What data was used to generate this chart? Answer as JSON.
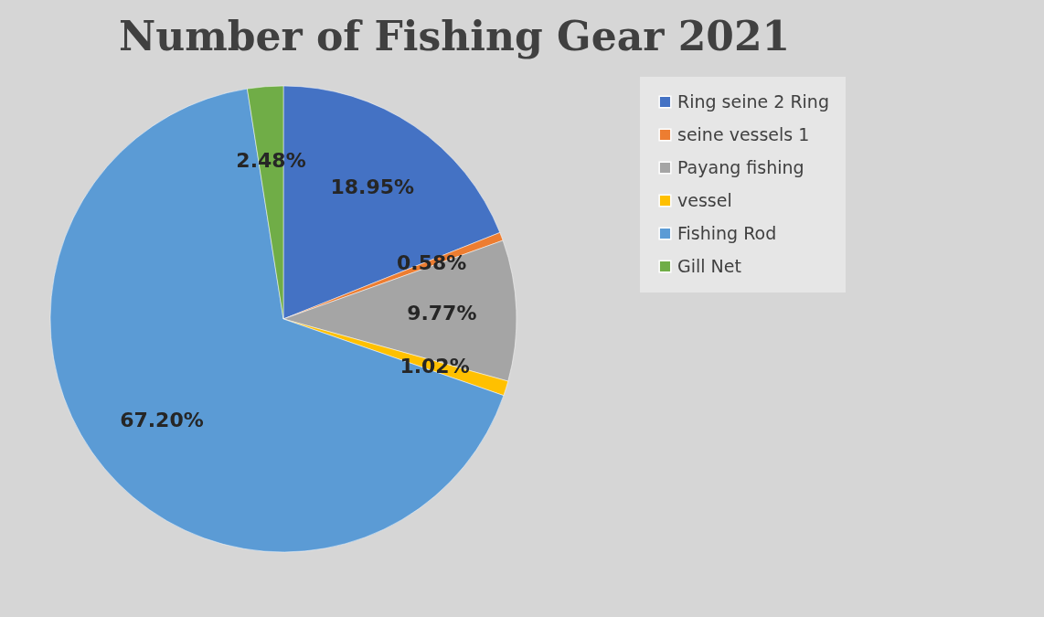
{
  "chart_data": {
    "type": "pie",
    "title": "Number of Fishing Gear 2021",
    "categories": [
      "Ring seine 2 Ring",
      "seine vessels 1",
      "Payang fishing",
      "vessel",
      "Fishing Rod",
      "Gill Net"
    ],
    "values": [
      18.95,
      0.58,
      9.77,
      1.02,
      67.2,
      2.48
    ],
    "colors": [
      "#4472c4",
      "#ed7d31",
      "#a5a5a5",
      "#ffc000",
      "#5b9bd5",
      "#70ad47"
    ],
    "value_labels": [
      "18.95%",
      "0.58%",
      "9.77%",
      "1.02%",
      "67.20%",
      "2.48%"
    ],
    "legend": "right"
  }
}
